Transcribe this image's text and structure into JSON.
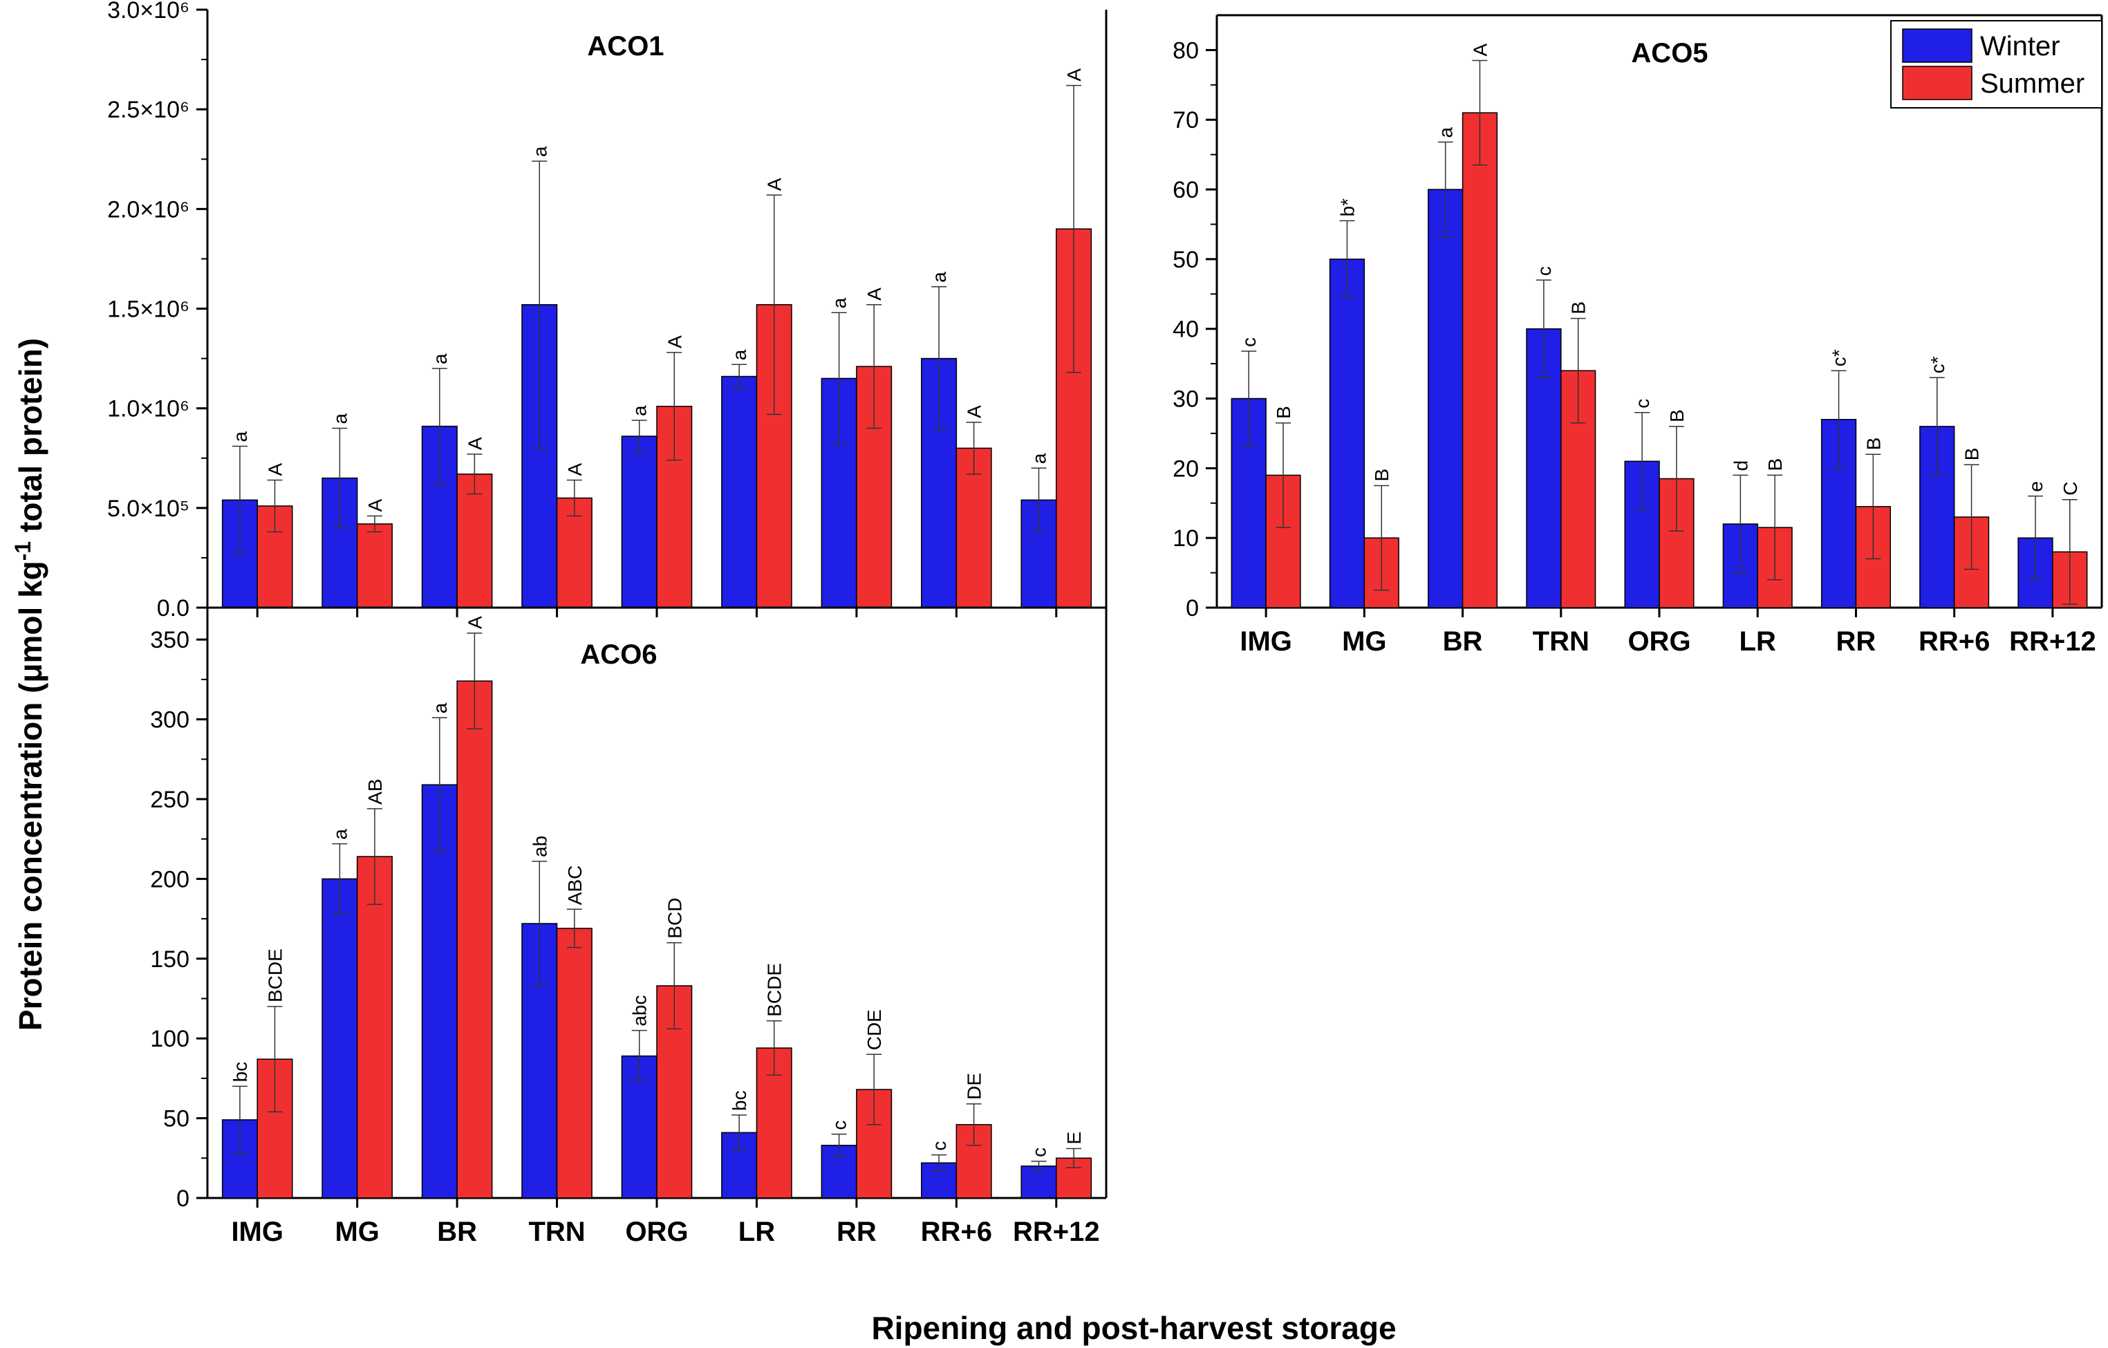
{
  "chart_data": [
    {
      "id": "aco1",
      "type": "bar",
      "title": "ACO1",
      "categories": [
        "IMG",
        "MG",
        "BR",
        "TRN",
        "ORG",
        "LR",
        "RR",
        "RR+6",
        "RR+12"
      ],
      "ylim": [
        0,
        3000000
      ],
      "yticks": [
        0,
        500000,
        1000000,
        1500000,
        2000000,
        2500000,
        3000000
      ],
      "ytick_labels": [
        "0.0",
        "5.0×10⁵",
        "1.0×10⁶",
        "1.5×10⁶",
        "2.0×10⁶",
        "2.5×10⁶",
        "3.0×10⁶"
      ],
      "series": [
        {
          "name": "Winter",
          "color": "#1f1fe6",
          "values": [
            540000,
            650000,
            910000,
            1520000,
            860000,
            1160000,
            1150000,
            1250000,
            540000
          ],
          "errors": [
            270000,
            250000,
            290000,
            720000,
            80000,
            60000,
            330000,
            360000,
            160000
          ],
          "letters": [
            "a",
            "a",
            "a",
            "a",
            "a",
            "a",
            "a",
            "a",
            "a"
          ]
        },
        {
          "name": "Summer",
          "color": "#f03030",
          "values": [
            510000,
            420000,
            670000,
            550000,
            1010000,
            1520000,
            1210000,
            800000,
            1900000
          ],
          "errors": [
            130000,
            40000,
            100000,
            90000,
            270000,
            550000,
            310000,
            130000,
            720000
          ],
          "letters": [
            "A",
            "A",
            "A",
            "A",
            "A",
            "A",
            "A",
            "A",
            "A"
          ]
        }
      ]
    },
    {
      "id": "aco5",
      "type": "bar",
      "title": "ACO5",
      "categories": [
        "IMG",
        "MG",
        "BR",
        "TRN",
        "ORG",
        "LR",
        "RR",
        "RR+6",
        "RR+12"
      ],
      "ylim": [
        0,
        85
      ],
      "yticks": [
        0,
        10,
        20,
        30,
        40,
        50,
        60,
        70,
        80
      ],
      "ytick_labels": [
        "0",
        "10",
        "20",
        "30",
        "40",
        "50",
        "60",
        "70",
        "80"
      ],
      "series": [
        {
          "name": "Winter",
          "color": "#1f1fe6",
          "values": [
            30,
            50,
            60,
            40,
            21,
            12,
            27,
            26,
            10
          ],
          "errors": [
            6.8,
            5.5,
            6.8,
            7,
            7,
            7,
            7,
            7,
            6
          ],
          "letters": [
            "c",
            "b*",
            "a",
            "c",
            "c",
            "d",
            "c*",
            "c*",
            "e"
          ]
        },
        {
          "name": "Summer",
          "color": "#f03030",
          "values": [
            19,
            10,
            71,
            34,
            18.5,
            11.5,
            14.5,
            13,
            8
          ],
          "errors": [
            7.5,
            7.5,
            7.5,
            7.5,
            7.5,
            7.5,
            7.5,
            7.5,
            7.5
          ],
          "letters": [
            "B",
            "B",
            "A",
            "B",
            "B",
            "B",
            "B",
            "B",
            "C"
          ]
        }
      ],
      "legend": {
        "position": "top-right",
        "entries": [
          "Winter",
          "Summer"
        ]
      }
    },
    {
      "id": "aco6",
      "type": "bar",
      "title": "ACO6",
      "categories": [
        "IMG",
        "MG",
        "BR",
        "TRN",
        "ORG",
        "LR",
        "RR",
        "RR+6",
        "RR+12"
      ],
      "ylim": [
        0,
        370
      ],
      "yticks": [
        0,
        50,
        100,
        150,
        200,
        250,
        300,
        350
      ],
      "ytick_labels": [
        "0",
        "50",
        "100",
        "150",
        "200",
        "250",
        "300",
        "350"
      ],
      "series": [
        {
          "name": "Winter",
          "color": "#1f1fe6",
          "values": [
            49,
            200,
            259,
            172,
            89,
            41,
            33,
            22,
            20
          ],
          "errors": [
            21,
            22,
            42,
            39,
            16,
            11,
            7,
            5,
            3
          ],
          "letters": [
            "bc",
            "a",
            "a",
            "ab",
            "abc",
            "bc",
            "c",
            "c",
            "c"
          ]
        },
        {
          "name": "Summer",
          "color": "#f03030",
          "values": [
            87,
            214,
            324,
            169,
            133,
            94,
            68,
            46,
            25
          ],
          "errors": [
            33,
            30,
            30,
            12,
            27,
            17,
            22,
            13,
            6
          ],
          "letters": [
            "BCDE",
            "AB",
            "A",
            "ABC",
            "BCD",
            "BCDE",
            "CDE",
            "DE",
            "E"
          ]
        }
      ]
    }
  ],
  "axis_titles": {
    "y": "Protein concentration (μmol kg",
    "y_sup": "-1",
    "y_tail": " total protein)",
    "x": "Ripening and post-harvest storage"
  }
}
